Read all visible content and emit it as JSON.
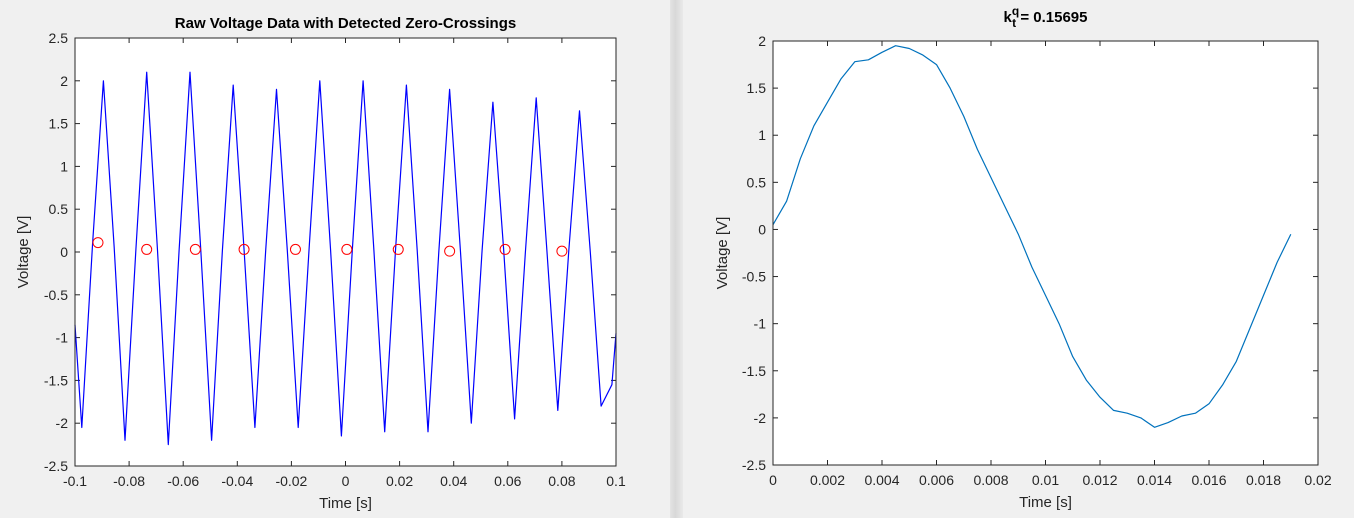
{
  "chart_data": [
    {
      "type": "line",
      "title": "Raw Voltage Data with Detected Zero-Crossings",
      "xlabel": "Time [s]",
      "ylabel": "Voltage [V]",
      "xlim": [
        -0.1,
        0.1
      ],
      "ylim": [
        -2.5,
        2.5
      ],
      "xticks": [
        -0.1,
        -0.08,
        -0.06,
        -0.04,
        -0.02,
        0,
        0.02,
        0.04,
        0.06,
        0.08,
        0.1
      ],
      "xtick_labels": [
        "-0.1",
        "-0.08",
        "-0.06",
        "-0.04",
        "-0.02",
        "0",
        "0.02",
        "0.04",
        "0.06",
        "0.08",
        "0.1"
      ],
      "yticks": [
        -2.5,
        -2,
        -1.5,
        -1,
        -0.5,
        0,
        0.5,
        1,
        1.5,
        2,
        2.5
      ],
      "ytick_labels": [
        "-2.5",
        "-2",
        "-1.5",
        "-1",
        "-0.5",
        "0",
        "0.5",
        "1",
        "1.5",
        "2",
        "2.5"
      ],
      "grid": false,
      "line_color": "#0000ff",
      "marker_color": "#ff0000",
      "series": [
        {
          "style": "line",
          "x": [
            -0.1,
            -0.0975,
            -0.0935,
            -0.0895,
            -0.0855,
            -0.0815,
            -0.0775,
            -0.0735,
            -0.0695,
            -0.0655,
            -0.0615,
            -0.0575,
            -0.0535,
            -0.0495,
            -0.0455,
            -0.0415,
            -0.0375,
            -0.0335,
            -0.0295,
            -0.0255,
            -0.0215,
            -0.0175,
            -0.0135,
            -0.0095,
            -0.0055,
            -0.0015,
            0.0025,
            0.0065,
            0.0105,
            0.0145,
            0.0185,
            0.0225,
            0.0265,
            0.0305,
            0.0345,
            0.0385,
            0.0425,
            0.0465,
            0.0505,
            0.0545,
            0.0585,
            0.0625,
            0.0665,
            0.0705,
            0.0745,
            0.0785,
            0.0825,
            0.0865,
            0.0905,
            0.0945,
            0.0985,
            0.1
          ],
          "y": [
            -0.85,
            -2.05,
            0.1,
            2.0,
            0.05,
            -2.2,
            0.03,
            2.1,
            0.02,
            -2.25,
            0.02,
            2.1,
            0.02,
            -2.2,
            0.02,
            1.95,
            0.02,
            -2.05,
            0.02,
            1.9,
            0.02,
            -2.05,
            0.02,
            2.0,
            0.02,
            -2.15,
            0.02,
            2.0,
            0.02,
            -2.1,
            0.02,
            1.95,
            0.02,
            -2.1,
            0.0,
            1.9,
            0.0,
            -2.0,
            0.02,
            1.75,
            0.02,
            -1.95,
            0.0,
            1.8,
            0.0,
            -1.85,
            0.0,
            1.65,
            0.0,
            -1.8,
            -1.55,
            -0.95
          ]
        },
        {
          "style": "markers",
          "x": [
            -0.0915,
            -0.0735,
            -0.0555,
            -0.0375,
            -0.0185,
            0.0005,
            0.0195,
            0.0385,
            0.059,
            0.08
          ],
          "y": [
            0.11,
            0.03,
            0.03,
            0.03,
            0.03,
            0.03,
            0.03,
            0.01,
            0.03,
            0.01
          ]
        }
      ]
    },
    {
      "type": "line",
      "title": "k_t^q = 0.15695",
      "title_main": "k",
      "title_sup": "q",
      "title_sub": "t",
      "title_rest": " = 0.15695",
      "xlabel": "Time [s]",
      "ylabel": "Voltage [V]",
      "xlim": [
        0,
        0.02
      ],
      "ylim": [
        -2.5,
        2
      ],
      "xticks": [
        0,
        0.002,
        0.004,
        0.006,
        0.008,
        0.01,
        0.012,
        0.014,
        0.016,
        0.018,
        0.02
      ],
      "xtick_labels": [
        "0",
        "0.002",
        "0.004",
        "0.006",
        "0.008",
        "0.01",
        "0.012",
        "0.014",
        "0.016",
        "0.018",
        "0.02"
      ],
      "yticks": [
        -2.5,
        -2,
        -1.5,
        -1,
        -0.5,
        0,
        0.5,
        1,
        1.5,
        2
      ],
      "ytick_labels": [
        "-2.5",
        "-2",
        "-1.5",
        "-1",
        "-0.5",
        "0",
        "0.5",
        "1",
        "1.5",
        "2"
      ],
      "grid": false,
      "line_color": "#0072bd",
      "series": [
        {
          "style": "line",
          "x": [
            0,
            0.0005,
            0.001,
            0.0015,
            0.002,
            0.0025,
            0.003,
            0.0035,
            0.004,
            0.0045,
            0.005,
            0.0055,
            0.006,
            0.0065,
            0.007,
            0.0075,
            0.008,
            0.0085,
            0.009,
            0.0095,
            0.01,
            0.0105,
            0.011,
            0.0115,
            0.012,
            0.0125,
            0.013,
            0.0135,
            0.014,
            0.0145,
            0.015,
            0.0155,
            0.016,
            0.0165,
            0.017,
            0.0175,
            0.018,
            0.0185,
            0.019
          ],
          "y": [
            0.05,
            0.3,
            0.75,
            1.1,
            1.35,
            1.6,
            1.78,
            1.8,
            1.88,
            1.95,
            1.92,
            1.85,
            1.75,
            1.5,
            1.2,
            0.85,
            0.55,
            0.25,
            -0.05,
            -0.4,
            -0.7,
            -1.0,
            -1.35,
            -1.6,
            -1.78,
            -1.92,
            -1.95,
            -2.0,
            -2.1,
            -2.05,
            -1.98,
            -1.95,
            -1.85,
            -1.65,
            -1.4,
            -1.05,
            -0.7,
            -0.35,
            -0.05
          ]
        }
      ]
    }
  ]
}
